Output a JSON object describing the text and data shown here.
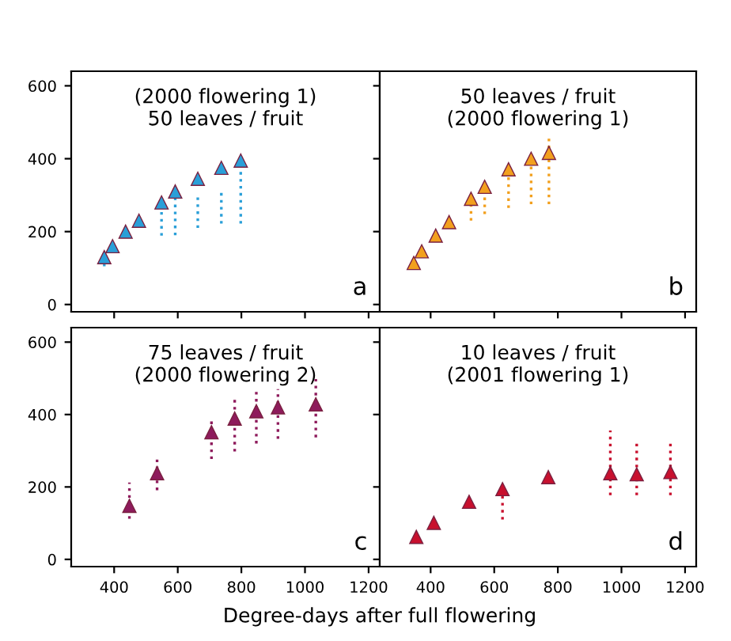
{
  "chart_data": [
    {
      "type": "scatter",
      "annotations": [
        "(2000 flowering 1)\n50 leaves / fruit",
        "a"
      ],
      "marker": "triangle",
      "grid": false,
      "tick_labels": "y",
      "xlim": [
        265,
        1235
      ],
      "xticks": [
        400,
        600,
        800,
        1000,
        1200
      ],
      "ylim": [
        -20,
        640
      ],
      "yticks": [
        0,
        200,
        400,
        600
      ],
      "x": [
        369,
        395,
        436,
        478,
        549,
        592,
        663,
        737,
        798
      ],
      "series": [
        {
          "color": "#2a9fd8",
          "values": [
            130,
            160,
            200,
            230,
            280,
            310,
            345,
            375,
            395
          ],
          "errors": [
            [
              105,
              130
            ],
            null,
            null,
            null,
            [
              189,
              280
            ],
            [
              190,
              310
            ],
            [
              210,
              303
            ],
            [
              222,
              318
            ],
            [
              222,
              368
            ]
          ]
        }
      ]
    },
    {
      "type": "scatter",
      "annotations": [
        "50 leaves / fruit\n(2000 flowering 1)",
        "b"
      ],
      "marker": "triangle",
      "grid": false,
      "tick_labels": false,
      "xlim": [
        240,
        1235
      ],
      "xticks": [
        400,
        600,
        800,
        1000,
        1200
      ],
      "ylim": [
        -20,
        640
      ],
      "yticks": [
        0,
        200,
        400,
        600
      ],
      "x": [
        347,
        372,
        416,
        458,
        527,
        570,
        645,
        716,
        772
      ],
      "series": [
        {
          "color": "#f2a01e",
          "values": [
            114,
            146,
            189,
            226,
            290,
            323,
            371,
            400,
            416
          ],
          "errors": [
            null,
            null,
            null,
            null,
            [
              230,
              300
            ],
            [
              248,
              340
            ],
            [
              265,
              370
            ],
            [
              275,
              410
            ],
            [
              275,
              455
            ]
          ]
        }
      ]
    },
    {
      "type": "scatter",
      "annotations": [
        "75 leaves / fruit\n(2000 flowering 2)",
        "c"
      ],
      "xlabel": "Degree-days after full flowering",
      "marker": "triangle",
      "grid": false,
      "xlim": [
        265,
        1235
      ],
      "xticks": [
        400,
        600,
        800,
        1000,
        1200
      ],
      "ylim": [
        -20,
        640
      ],
      "yticks": [
        0,
        200,
        400,
        600
      ],
      "x": [
        448,
        535,
        706,
        779,
        847,
        915,
        1034
      ],
      "series": [
        {
          "color": "#8e1b5c",
          "values": [
            148,
            238,
            351,
            389,
            409,
            420,
            428
          ],
          "errors": [
            [
              112,
              212
            ],
            [
              191,
              284
            ],
            [
              277,
              385
            ],
            [
              298,
              442
            ],
            [
              320,
              470
            ],
            [
              333,
              470
            ],
            [
              337,
              498
            ]
          ]
        }
      ]
    },
    {
      "type": "scatter",
      "annotations": [
        "10 leaves / fruit\n(2001 flowering 1)",
        "d"
      ],
      "marker": "triangle",
      "grid": false,
      "tick_labels": "x",
      "xlim": [
        240,
        1235
      ],
      "xticks": [
        400,
        600,
        800,
        1000,
        1200
      ],
      "ylim": [
        -20,
        640
      ],
      "yticks": [
        0,
        200,
        400,
        600
      ],
      "x": [
        355,
        410,
        521,
        626,
        770,
        965,
        1048,
        1154
      ],
      "series": [
        {
          "color": "#c8102e",
          "values": [
            62,
            101,
            159,
            194,
            227,
            238,
            235,
            241
          ],
          "errors": [
            null,
            null,
            null,
            [
              110,
              197
            ],
            null,
            [
              177,
              356
            ],
            [
              177,
              320
            ],
            [
              177,
              330
            ]
          ]
        }
      ]
    }
  ]
}
